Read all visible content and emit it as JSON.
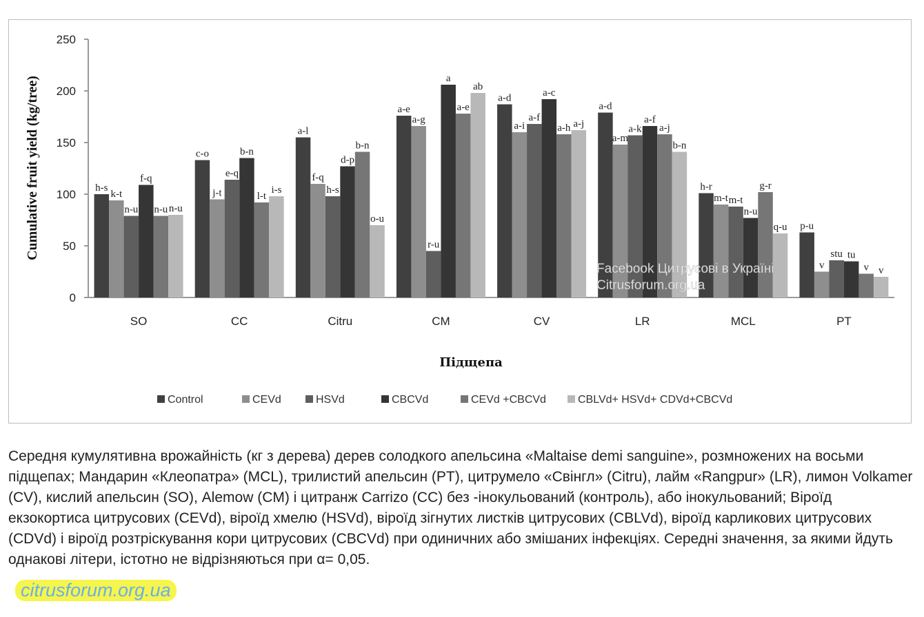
{
  "chart_data": {
    "type": "bar",
    "ylabel": "Cumulative fruit yield (kg/tree)",
    "xlabel": "Підщепа",
    "ylim": [
      0,
      250
    ],
    "yticks": [
      0,
      50,
      100,
      150,
      200,
      250
    ],
    "categories": [
      "SO",
      "CC",
      "Citru",
      "CM",
      "CV",
      "LR",
      "MCL",
      "PT"
    ],
    "legend_position": "bottom",
    "series": [
      {
        "name": "Control",
        "color": "#404040",
        "values": [
          100,
          133,
          155,
          176,
          187,
          179,
          101,
          63
        ],
        "labels": [
          "h-s",
          "c-o",
          "a-l",
          "a-e",
          "a-d",
          "a-d",
          "h-r",
          "p-u"
        ]
      },
      {
        "name": "CEVd",
        "color": "#8e8e8e",
        "values": [
          94,
          95,
          110,
          166,
          160,
          148,
          90,
          25
        ],
        "labels": [
          "k-t",
          "j-t",
          "f-q",
          "a-g",
          "a-i",
          "a-m",
          "m-t",
          "v"
        ]
      },
      {
        "name": "HSVd",
        "color": "#5e5e5e",
        "values": [
          79,
          114,
          98,
          45,
          168,
          157,
          88,
          36
        ],
        "labels": [
          "n-u",
          "e-q",
          "h-s",
          "r-u",
          "a-f",
          "a-k",
          "m-t",
          "stu"
        ]
      },
      {
        "name": "CBCVd",
        "color": "#353535",
        "values": [
          109,
          135,
          127,
          206,
          192,
          166,
          77,
          35
        ],
        "labels": [
          "f-q",
          "b-n",
          "d-p",
          "a",
          "a-c",
          "a-f",
          "n-u",
          "tu"
        ]
      },
      {
        "name": "CEVd +CBCVd",
        "color": "#767676",
        "values": [
          79,
          92,
          141,
          178,
          158,
          158,
          102,
          23
        ],
        "labels": [
          "n-u",
          "l-t",
          "b-n",
          "a-e",
          "a-h",
          "a-j",
          "g-r",
          "v"
        ]
      },
      {
        "name": "CBLVd+ HSVd+ CDVd+CBCVd",
        "color": "#b8b8b8",
        "values": [
          80,
          98,
          70,
          198,
          162,
          141,
          62,
          20
        ],
        "labels": [
          "n-u",
          "i-s",
          "o-u",
          "ab",
          "a-j",
          "b-n",
          "q-u",
          "v"
        ]
      }
    ],
    "watermark": [
      "Facebook Цитрусові в Україні",
      "Citrusforum.org.ua"
    ]
  },
  "caption": "Середня кумулятивна врожайність (кг з дерева) дерев солодкого апельсина «Maltaise demi sanguine», розмножених на восьми підщепах; Мандарин «Клеопатра» (MCL), трилистий апельсин (PT), цитрумело «Свінгл» (Citru), лайм «Rangpur» (LR), лимон Volkamer (CV), кислий апельсин (SO), Alemow (CM) і цитранж Carrizo (CC) без -інокульований (контроль), або інокульований; Віроїд екзокортиса цитрусових (CEVd), віроїд хмелю (HSVd), віроїд зігнутих листків цитрусових (CBLVd), віроїд карликових цитрусових (CDVd) і віроїд розтріскування кори цитрусових (CBCVd) при одиничних або змішаних інфекціях. Середні значення, за якими йдуть однакові літери, істотно не відрізняються при α= 0,05.",
  "site_watermark": "citrusforum.org.ua"
}
